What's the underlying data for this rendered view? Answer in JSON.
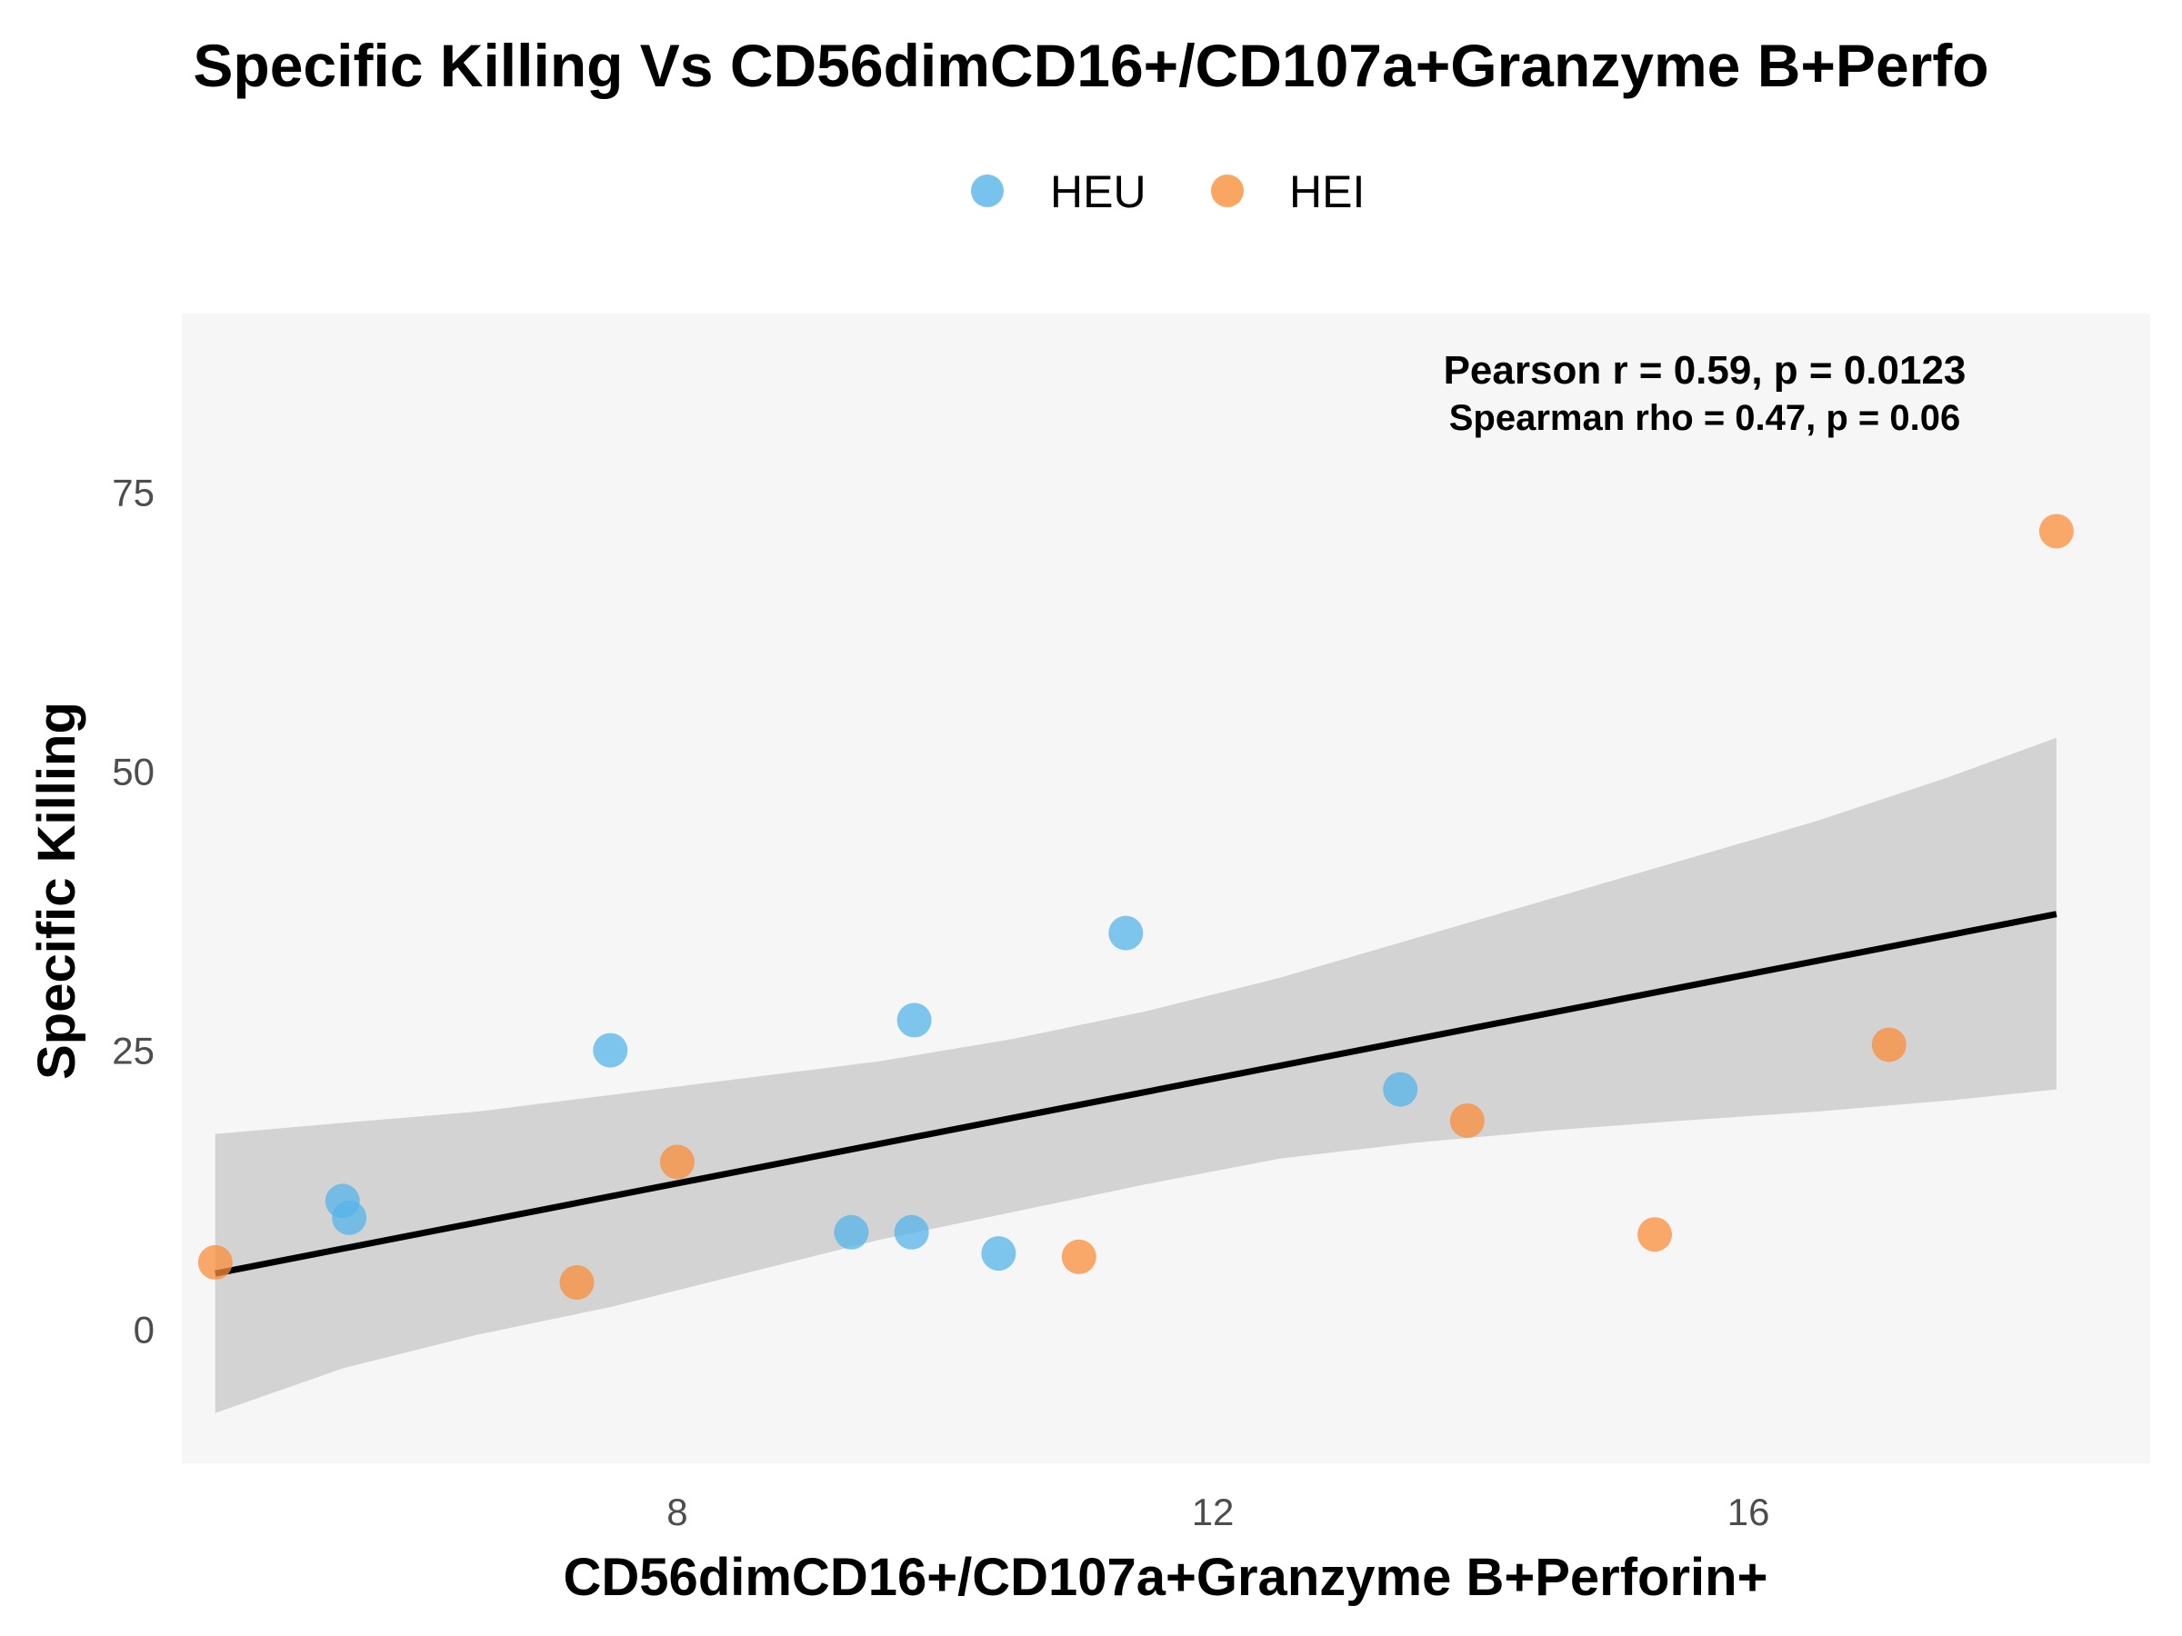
{
  "chart_data": {
    "type": "scatter",
    "title": "Specific Killing Vs CD56dimCD16+/CD107a+Granzyme B+Perfo",
    "xlabel": "CD56dimCD16+/CD107a+Granzyme B+Perforin+",
    "ylabel": "Specific Killing",
    "xlim": [
      4.3,
      19.0
    ],
    "ylim": [
      -12,
      91
    ],
    "x_ticks": [
      8,
      12,
      16
    ],
    "y_ticks": [
      0,
      25,
      50,
      75
    ],
    "grid": false,
    "legend_position": "top",
    "series": [
      {
        "name": "HEU",
        "color": "#56b4e9",
        "points": [
          {
            "x": 5.5,
            "y": 11.5
          },
          {
            "x": 5.55,
            "y": 10.0
          },
          {
            "x": 7.5,
            "y": 25.0
          },
          {
            "x": 9.3,
            "y": 8.7
          },
          {
            "x": 9.75,
            "y": 8.7
          },
          {
            "x": 9.77,
            "y": 27.7
          },
          {
            "x": 10.4,
            "y": 6.8
          },
          {
            "x": 11.35,
            "y": 35.5
          },
          {
            "x": 13.4,
            "y": 21.5
          }
        ]
      },
      {
        "name": "HEI",
        "color": "#f98e3a",
        "points": [
          {
            "x": 4.55,
            "y": 6.0
          },
          {
            "x": 7.25,
            "y": 4.2
          },
          {
            "x": 8.0,
            "y": 15.0
          },
          {
            "x": 11.0,
            "y": 6.5
          },
          {
            "x": 13.9,
            "y": 18.7
          },
          {
            "x": 15.3,
            "y": 8.5
          },
          {
            "x": 17.05,
            "y": 25.5
          },
          {
            "x": 18.3,
            "y": 71.5
          }
        ]
      }
    ],
    "regression": {
      "x": [
        4.55,
        18.3
      ],
      "y": [
        5.0,
        37.2
      ],
      "band_x": [
        4.55,
        5.5,
        6.5,
        7.5,
        8.5,
        9.5,
        10.5,
        11.5,
        12.5,
        13.5,
        14.5,
        15.5,
        16.5,
        17.5,
        18.3
      ],
      "band_lower": [
        -7.5,
        -3.5,
        -0.5,
        2.0,
        5.0,
        8.0,
        10.5,
        13.0,
        15.3,
        16.7,
        17.8,
        18.7,
        19.5,
        20.5,
        21.5
      ],
      "band_upper": [
        17.5,
        18.5,
        19.5,
        21.0,
        22.5,
        24.0,
        26.0,
        28.5,
        31.5,
        35.0,
        38.5,
        42.0,
        45.5,
        49.5,
        53.0
      ]
    },
    "annotations": {
      "pearson": "Pearson r = 0.59, p = 0.0123",
      "spearman": "Spearman rho = 0.47, p = 0.06"
    }
  }
}
